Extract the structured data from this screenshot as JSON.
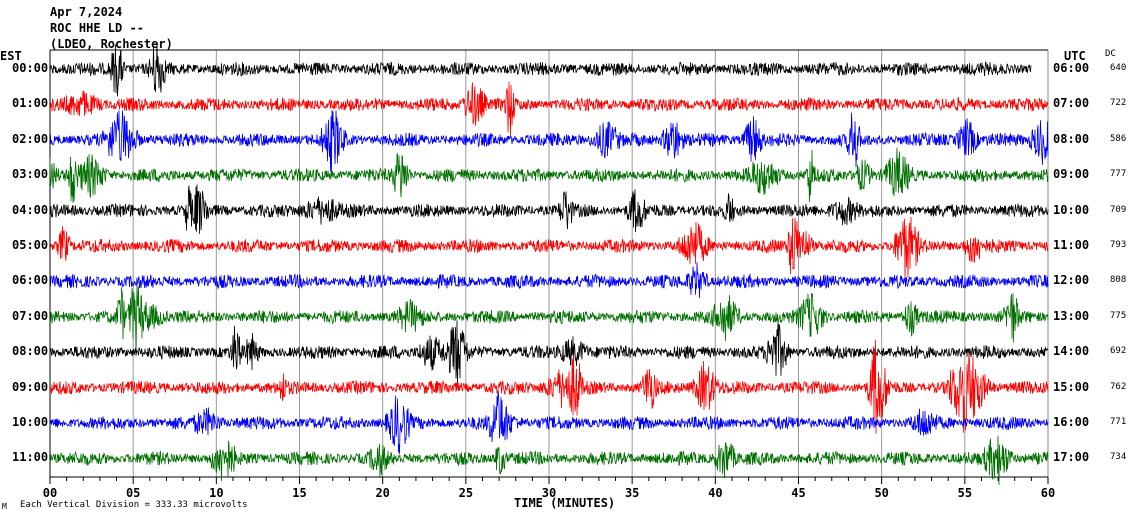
{
  "header": {
    "date": "Apr 7,2024",
    "station": "ROC HHE LD --",
    "network": "(LDEO, Rochester)"
  },
  "chart_data": {
    "type": "line",
    "title": "Apr 7,2024",
    "left_axis_label": "EST",
    "right_axis_label": "UTC",
    "dc_label": "DC",
    "xlabel": "TIME (MINUTES)",
    "xlim": [
      0,
      60
    ],
    "x_ticks": [
      "00",
      "05",
      "10",
      "15",
      "20",
      "25",
      "30",
      "35",
      "40",
      "45",
      "50",
      "55",
      "60"
    ],
    "grid": true,
    "scale_note": "Each Vertical Division =  333.33 microvolts",
    "corner_mark": "M",
    "trace_colors": [
      "#000000",
      "#ff0000",
      "#0000ff",
      "#007000"
    ],
    "rows": [
      {
        "est": "00:00",
        "utc": "06:00",
        "dc": "640"
      },
      {
        "est": "01:00",
        "utc": "07:00",
        "dc": "722"
      },
      {
        "est": "02:00",
        "utc": "08:00",
        "dc": "586"
      },
      {
        "est": "03:00",
        "utc": "09:00",
        "dc": "777"
      },
      {
        "est": "04:00",
        "utc": "10:00",
        "dc": "709"
      },
      {
        "est": "05:00",
        "utc": "11:00",
        "dc": "793"
      },
      {
        "est": "06:00",
        "utc": "12:00",
        "dc": "808"
      },
      {
        "est": "07:00",
        "utc": "13:00",
        "dc": "775"
      },
      {
        "est": "08:00",
        "utc": "14:00",
        "dc": "692"
      },
      {
        "est": "09:00",
        "utc": "15:00",
        "dc": "762"
      },
      {
        "est": "10:00",
        "utc": "16:00",
        "dc": "771"
      },
      {
        "est": "11:00",
        "utc": "17:00",
        "dc": "734"
      }
    ]
  }
}
